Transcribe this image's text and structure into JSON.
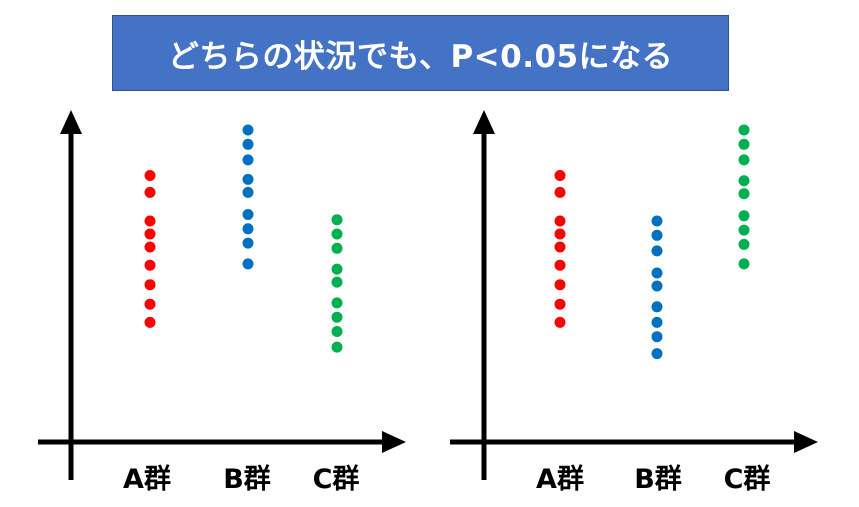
{
  "banner": {
    "title": "どちらの状況でも、P<0.05になる"
  },
  "colors": {
    "banner_bg": "#4472c4",
    "group_a": "#ff0000",
    "group_b": "#0070c0",
    "group_c": "#00b050",
    "axis": "#000000"
  },
  "chart_data": [
    {
      "type": "scatter",
      "categories": [
        "A群",
        "B群",
        "C群"
      ],
      "series": [
        {
          "category": "A群",
          "color": "#ff0000",
          "values": [
            10.25,
            9.6,
            8.5,
            8.0,
            7.5,
            6.8,
            6.05,
            5.3,
            4.6
          ]
        },
        {
          "category": "B群",
          "color": "#0070c0",
          "values": [
            12.0,
            11.45,
            10.85,
            10.1,
            9.6,
            8.75,
            8.2,
            7.65,
            6.85
          ]
        },
        {
          "category": "C群",
          "color": "#00b050",
          "values": [
            8.55,
            8.0,
            7.45,
            6.65,
            6.15,
            5.35,
            4.8,
            4.25,
            3.65
          ]
        }
      ]
    },
    {
      "type": "scatter",
      "categories": [
        "A群",
        "B群",
        "C群"
      ],
      "series": [
        {
          "category": "A群",
          "color": "#ff0000",
          "values": [
            10.25,
            9.6,
            8.5,
            8.0,
            7.5,
            6.8,
            6.05,
            5.3,
            4.6
          ]
        },
        {
          "category": "B群",
          "color": "#0070c0",
          "values": [
            8.5,
            7.95,
            7.35,
            6.5,
            6.0,
            5.2,
            4.6,
            4.05,
            3.4
          ]
        },
        {
          "category": "C群",
          "color": "#00b050",
          "values": [
            12.0,
            11.45,
            10.85,
            10.05,
            9.55,
            8.7,
            8.15,
            7.6,
            6.85
          ]
        }
      ]
    }
  ]
}
